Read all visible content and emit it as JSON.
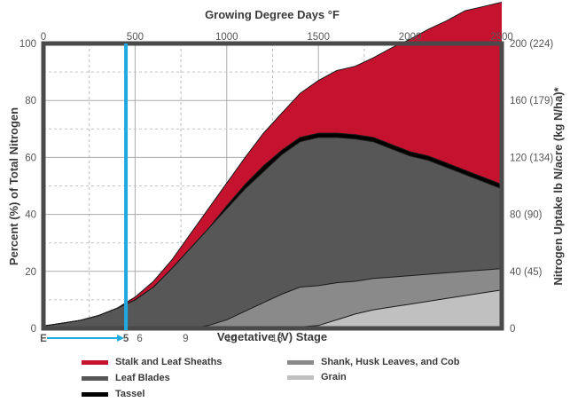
{
  "chart_data": {
    "type": "area",
    "title": "",
    "top_axis": {
      "label": "Growing Degree Days °F",
      "ticks": [
        "0",
        "500",
        "1000",
        "1500",
        "2000",
        "2500"
      ],
      "range": [
        0,
        2500
      ]
    },
    "bottom_axis": {
      "label": "Vegetative (V) Stage",
      "ticks": [
        {
          "label": "E",
          "gdd": 0,
          "highlight": true
        },
        {
          "label": "5",
          "gdd": 450,
          "highlight": true
        },
        {
          "label": "6",
          "gdd": 525,
          "highlight": false
        },
        {
          "label": "9",
          "gdd": 775,
          "highlight": false
        },
        {
          "label": "14",
          "gdd": 1025,
          "highlight": false
        },
        {
          "label": "18",
          "gdd": 1275,
          "highlight": false
        }
      ]
    },
    "left_axis": {
      "label": "Percent (%) of Total Nitrogen",
      "ticks": [
        "0",
        "20",
        "40",
        "60",
        "80",
        "100"
      ],
      "range": [
        0,
        100
      ]
    },
    "right_axis": {
      "label": "Nitrogen Uptake lb N/acre (kg N/ha)*",
      "ticks": [
        "0",
        "40 (45)",
        "80 (90)",
        "120 (134)",
        "160 (179)",
        "200 (224)"
      ]
    },
    "grid": true,
    "marker": {
      "gdd": 450,
      "color": "#1fa9e1"
    },
    "x_gdd": [
      0,
      100,
      200,
      300,
      400,
      500,
      600,
      700,
      800,
      900,
      1000,
      1100,
      1200,
      1300,
      1400,
      1500,
      1600,
      1700,
      1800,
      1900,
      2000,
      2100,
      2200,
      2300,
      2400,
      2500
    ],
    "series": [
      {
        "name": "Grain",
        "color": "#c0c0c0",
        "values": [
          0,
          0,
          0,
          0,
          0,
          0,
          0,
          0,
          0,
          0,
          0,
          0,
          0,
          0,
          0.5,
          1,
          3,
          5,
          6.5,
          7.5,
          8.5,
          9.5,
          10.5,
          11.5,
          12.5,
          13.5
        ]
      },
      {
        "name": "Shank, Husk Leaves, and Cob",
        "color": "#8a8a8a",
        "values": [
          0,
          0,
          0,
          0,
          0,
          0,
          0,
          0,
          0,
          1,
          3,
          6,
          9,
          12,
          14,
          14,
          13,
          11.5,
          11,
          10.5,
          10,
          9.5,
          9,
          8.5,
          8,
          7.5
        ]
      },
      {
        "name": "Leaf Blades",
        "color": "#575757",
        "values": [
          0.8,
          1.8,
          2.8,
          4.5,
          7,
          10,
          14.5,
          21,
          28,
          34,
          39,
          43,
          46,
          49,
          51,
          52,
          51,
          50,
          48,
          45,
          42,
          40,
          37,
          34,
          31,
          28
        ]
      },
      {
        "name": "Tassel",
        "color": "#000000",
        "values": [
          0,
          0,
          0,
          0,
          0,
          0,
          0,
          0,
          0,
          0,
          1,
          1.5,
          2,
          1.5,
          1.5,
          1.5,
          1.5,
          1.5,
          1.5,
          1.5,
          1.5,
          1.5,
          1.5,
          1.5,
          1.5,
          1.5
        ]
      },
      {
        "name": "Stalk and Leaf Sheaths",
        "color": "#c4122f",
        "values": [
          0,
          0,
          0,
          0,
          0,
          1,
          2,
          3,
          5,
          7,
          8,
          9.5,
          11.5,
          13,
          15.5,
          18.5,
          22,
          24,
          28,
          34,
          39.5,
          44.5,
          50,
          56,
          60,
          64
        ]
      }
    ]
  },
  "legend": [
    {
      "label": "Stalk and Leaf Sheaths",
      "color": "#c4122f"
    },
    {
      "label": "Shank, Husk Leaves, and Cob",
      "color": "#8a8a8a"
    },
    {
      "label": "Leaf Blades",
      "color": "#575757"
    },
    {
      "label": "Grain",
      "color": "#c0c0c0"
    },
    {
      "label": "Tassel",
      "color": "#000000"
    }
  ]
}
